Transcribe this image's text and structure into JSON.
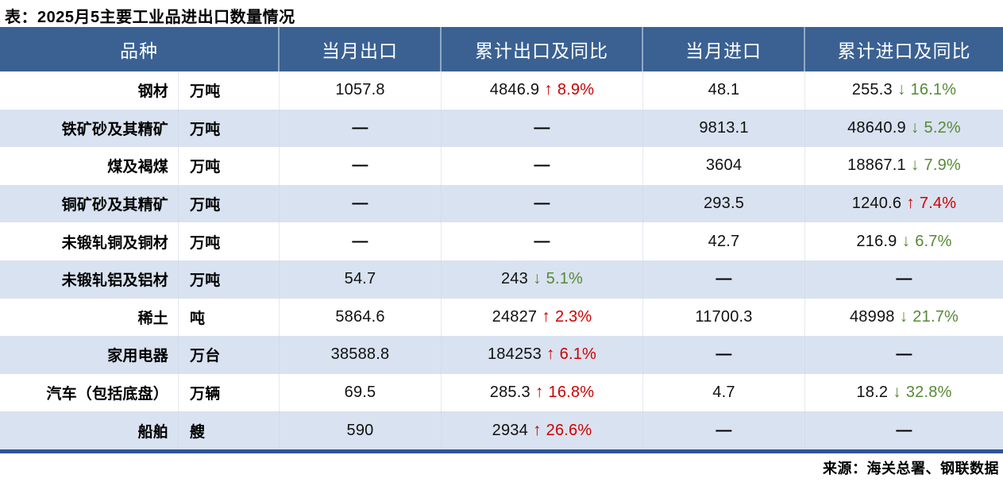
{
  "title": "表：2025月5主要工业品进出口数量情况",
  "source": "来源：海关总署、钢联数据",
  "colors": {
    "header_bg": "#3A6192",
    "alt_row_bg": "#D9E2F0",
    "bottom_rule": "#2F5496",
    "up_red": "#CE0000",
    "down_green": "#568A36",
    "header_text": "#FFFFFF",
    "body_text": "#000000"
  },
  "icons": {
    "up": "↑",
    "down": "↓"
  },
  "chart_data": {
    "type": "table",
    "title": "表：2025月5主要工业品进出口数量情况",
    "source": "来源：海关总署、钢联数据",
    "headers": [
      "品种",
      "当月出口",
      "累计出口及同比",
      "当月进口",
      "累计进口及同比"
    ],
    "empty_marker": "—",
    "rows": [
      {
        "name": "钢材",
        "unit": "万吨",
        "month_export": "1057.8",
        "cum_export": "4846.9",
        "cum_export_dir": "up",
        "cum_export_yoy": "8.9%",
        "month_import": "48.1",
        "cum_import": "255.3",
        "cum_import_dir": "down",
        "cum_import_yoy": "16.1%"
      },
      {
        "name": "铁矿砂及其精矿",
        "unit": "万吨",
        "month_export": "—",
        "cum_export": "—",
        "cum_export_dir": null,
        "cum_export_yoy": null,
        "month_import": "9813.1",
        "cum_import": "48640.9",
        "cum_import_dir": "down",
        "cum_import_yoy": "5.2%"
      },
      {
        "name": "煤及褐煤",
        "unit": "万吨",
        "month_export": "—",
        "cum_export": "—",
        "cum_export_dir": null,
        "cum_export_yoy": null,
        "month_import": "3604",
        "cum_import": "18867.1",
        "cum_import_dir": "down",
        "cum_import_yoy": "7.9%"
      },
      {
        "name": "铜矿砂及其精矿",
        "unit": "万吨",
        "month_export": "—",
        "cum_export": "—",
        "cum_export_dir": null,
        "cum_export_yoy": null,
        "month_import": "293.5",
        "cum_import": "1240.6",
        "cum_import_dir": "up",
        "cum_import_yoy": "7.4%"
      },
      {
        "name": "未锻轧铜及铜材",
        "unit": "万吨",
        "month_export": "—",
        "cum_export": "—",
        "cum_export_dir": null,
        "cum_export_yoy": null,
        "month_import": "42.7",
        "cum_import": "216.9",
        "cum_import_dir": "down",
        "cum_import_yoy": "6.7%"
      },
      {
        "name": "未锻轧铝及铝材",
        "unit": "万吨",
        "month_export": "54.7",
        "cum_export": "243",
        "cum_export_dir": "down",
        "cum_export_yoy": "5.1%",
        "month_import": "—",
        "cum_import": "—",
        "cum_import_dir": null,
        "cum_import_yoy": null
      },
      {
        "name": "稀土",
        "unit": "吨",
        "month_export": "5864.6",
        "cum_export": "24827",
        "cum_export_dir": "up",
        "cum_export_yoy": "2.3%",
        "month_import": "11700.3",
        "cum_import": "48998",
        "cum_import_dir": "down",
        "cum_import_yoy": "21.7%"
      },
      {
        "name": "家用电器",
        "unit": "万台",
        "month_export": "38588.8",
        "cum_export": "184253",
        "cum_export_dir": "up",
        "cum_export_yoy": "6.1%",
        "month_import": "—",
        "cum_import": "—",
        "cum_import_dir": null,
        "cum_import_yoy": null
      },
      {
        "name": "汽车（包括底盘）",
        "unit": "万辆",
        "month_export": "69.5",
        "cum_export": "285.3",
        "cum_export_dir": "up",
        "cum_export_yoy": "16.8%",
        "month_import": "4.7",
        "cum_import": "18.2",
        "cum_import_dir": "down",
        "cum_import_yoy": "32.8%"
      },
      {
        "name": "船舶",
        "unit": "艘",
        "month_export": "590",
        "cum_export": "2934",
        "cum_export_dir": "up",
        "cum_export_yoy": "26.6%",
        "month_import": "—",
        "cum_import": "—",
        "cum_import_dir": null,
        "cum_import_yoy": null
      }
    ]
  }
}
